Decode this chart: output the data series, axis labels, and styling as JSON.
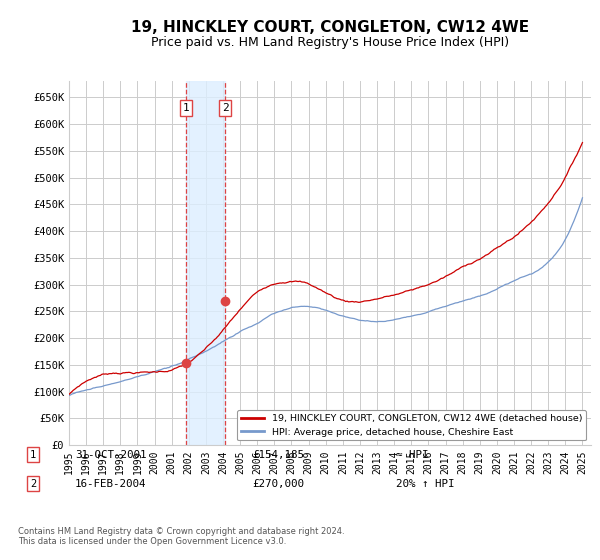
{
  "title": "19, HINCKLEY COURT, CONGLETON, CW12 4WE",
  "subtitle": "Price paid vs. HM Land Registry's House Price Index (HPI)",
  "title_fontsize": 11,
  "subtitle_fontsize": 9,
  "background_color": "#ffffff",
  "grid_color": "#cccccc",
  "plot_bg_color": "#ffffff",
  "red_line_color": "#cc0000",
  "blue_line_color": "#7799cc",
  "transaction_line_color": "#dd4444",
  "transaction_fill_color": "#ddeeff",
  "ylim": [
    0,
    680000
  ],
  "yticks": [
    0,
    50000,
    100000,
    150000,
    200000,
    250000,
    300000,
    350000,
    400000,
    450000,
    500000,
    550000,
    600000,
    650000
  ],
  "ytick_labels": [
    "£0",
    "£50K",
    "£100K",
    "£150K",
    "£200K",
    "£250K",
    "£300K",
    "£350K",
    "£400K",
    "£450K",
    "£500K",
    "£550K",
    "£600K",
    "£650K"
  ],
  "xlim_start": 1995.0,
  "xlim_end": 2025.5,
  "transactions": [
    {
      "x": 2001.833,
      "price": 154185,
      "label": "1",
      "date": "31-OCT-2001",
      "amount": "£154,185",
      "relation": "≈ HPI"
    },
    {
      "x": 2004.125,
      "price": 270000,
      "label": "2",
      "date": "16-FEB-2004",
      "amount": "£270,000",
      "relation": "20% ↑ HPI"
    }
  ],
  "legend_entries": [
    {
      "label": "19, HINCKLEY COURT, CONGLETON, CW12 4WE (detached house)",
      "color": "#cc0000",
      "lw": 2
    },
    {
      "label": "HPI: Average price, detached house, Cheshire East",
      "color": "#7799cc",
      "lw": 2
    }
  ],
  "footnote": "Contains HM Land Registry data © Crown copyright and database right 2024.\nThis data is licensed under the Open Government Licence v3.0."
}
